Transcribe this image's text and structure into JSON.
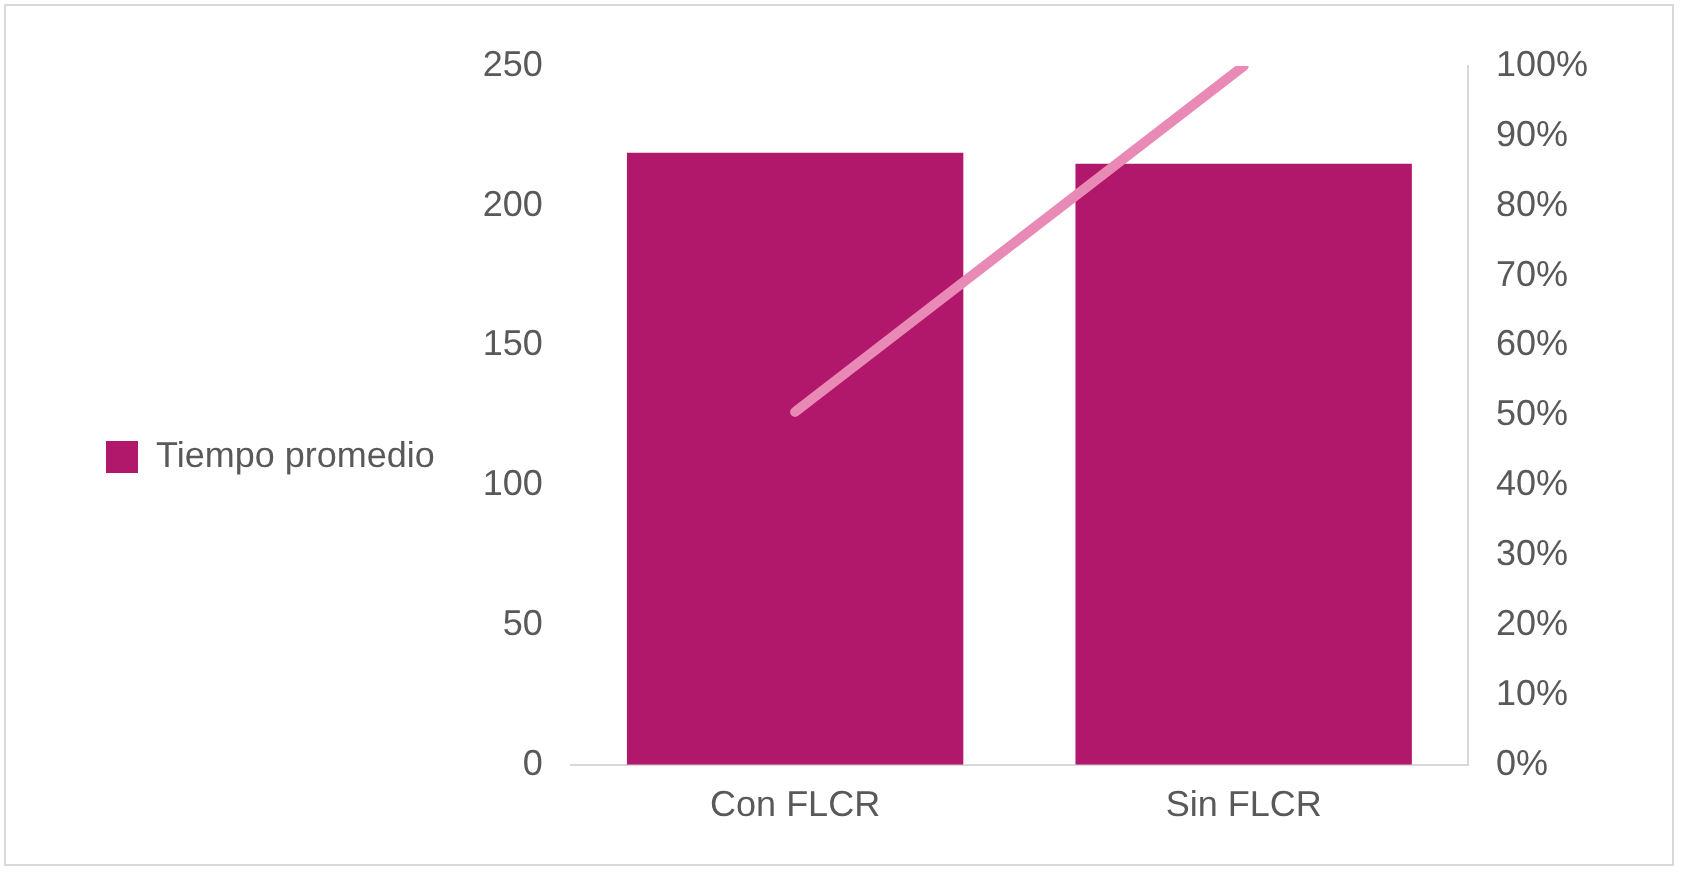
{
  "chart_data": {
    "type": "bar",
    "categories": [
      "Con FLCR",
      "Sin FLCR"
    ],
    "series": [
      {
        "name": "Tiempo promedio",
        "color": "#b1186b",
        "values": [
          219,
          215
        ]
      },
      {
        "type": "line",
        "axis": "y2",
        "color": "#e98ab6",
        "values": [
          50.5,
          100
        ]
      }
    ],
    "ylim": [
      0,
      250
    ],
    "yticks": [
      0,
      50,
      100,
      150,
      200,
      250
    ],
    "y2lim": [
      0,
      100
    ],
    "y2ticks": [
      {
        "value": 0,
        "label": "0%"
      },
      {
        "value": 10,
        "label": "10%"
      },
      {
        "value": 20,
        "label": "20%"
      },
      {
        "value": 30,
        "label": "30%"
      },
      {
        "value": 40,
        "label": "40%"
      },
      {
        "value": 50,
        "label": "50%"
      },
      {
        "value": 60,
        "label": "60%"
      },
      {
        "value": 70,
        "label": "70%"
      },
      {
        "value": 80,
        "label": "80%"
      },
      {
        "value": 90,
        "label": "90%"
      },
      {
        "value": 100,
        "label": "100%"
      }
    ],
    "grid": false,
    "legend": "left",
    "marker": "none"
  }
}
